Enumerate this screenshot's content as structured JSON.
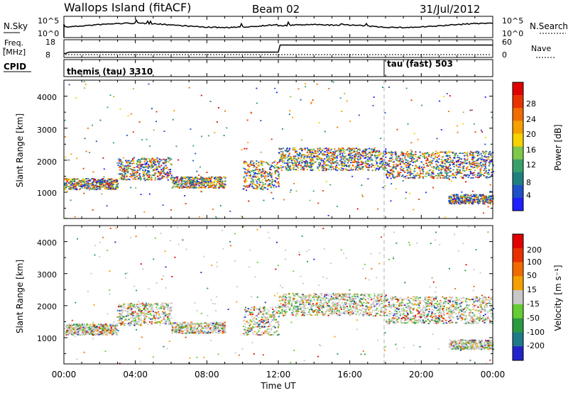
{
  "header": {
    "site": "Wallops Island (fitACF)",
    "beam": "Beam 02",
    "date": "31/Jul/2012"
  },
  "noise_panel": {
    "left_label": "N.Sky",
    "right_label": "N.Search",
    "left_ticks": [
      "10^5",
      "10^0"
    ],
    "right_ticks": [
      "10^5",
      "10^0"
    ]
  },
  "freq_panel": {
    "left_label_line1": "Freq.",
    "left_label_line2": "[MHz]",
    "right_label": "Nave",
    "left_ticks": [
      "18",
      "8"
    ],
    "right_ticks": [
      "60",
      "0"
    ]
  },
  "cpid_panel": {
    "label": "CPID",
    "programs": [
      {
        "name": "themis (tau) 3310",
        "start_hour": 0
      },
      {
        "name": "tau (fast) 503",
        "start_hour": 18
      }
    ]
  },
  "xaxis": {
    "label": "Time UT",
    "ticks": [
      "00:00",
      "04:00",
      "08:00",
      "12:00",
      "16:00",
      "20:00",
      "00:00"
    ]
  },
  "power_panel": {
    "ylabel": "Slant Range [km]",
    "yticks": [
      "1000",
      "2000",
      "3000",
      "4000"
    ],
    "colorbar_label": "Power [dB]",
    "colorbar_ticks": [
      "4",
      "8",
      "12",
      "16",
      "20",
      "24",
      "28"
    ],
    "colors": [
      "#1f1fff",
      "#1f50c8",
      "#1f8080",
      "#3aa06a",
      "#7ec84b",
      "#f5d200",
      "#f5a000",
      "#f06d00",
      "#e83200",
      "#e00000"
    ]
  },
  "velocity_panel": {
    "ylabel": "Slant Range [km]",
    "yticks": [
      "1000",
      "2000",
      "3000",
      "4000"
    ],
    "colorbar_label": "Velocity [m s⁻¹]",
    "colorbar_ticks": [
      "200",
      "100",
      "50",
      "15",
      "-15",
      "-50",
      "-100",
      "-200"
    ],
    "colors": [
      "#2222cc",
      "#1f7a8a",
      "#2a9a40",
      "#66cc33",
      "#c8c8c8",
      "#f5a000",
      "#f06a00",
      "#e83000",
      "#e00000"
    ]
  },
  "chart_data": {
    "type": "heatmap",
    "x_range_hours": [
      0,
      24
    ],
    "y_range_km": [
      180,
      4500
    ],
    "frequency_mhz": {
      "x_hours": [
        0,
        0.3,
        12,
        12.1,
        24
      ],
      "values": [
        10,
        11,
        11,
        15,
        15
      ]
    },
    "echo_regions": [
      {
        "t_start": 0,
        "t_end": 3,
        "range_km": [
          1100,
          1450
        ]
      },
      {
        "t_start": 3,
        "t_end": 6,
        "range_km": [
          1400,
          2100
        ]
      },
      {
        "t_start": 6,
        "t_end": 9,
        "range_km": [
          1150,
          1500
        ]
      },
      {
        "t_start": 10,
        "t_end": 12,
        "range_km": [
          1100,
          2000
        ]
      },
      {
        "t_start": 12,
        "t_end": 18,
        "range_km": [
          1700,
          2400
        ]
      },
      {
        "t_start": 18,
        "t_end": 24,
        "range_km": [
          1450,
          2300
        ]
      },
      {
        "t_start": 21.5,
        "t_end": 24,
        "range_km": [
          650,
          950
        ]
      }
    ]
  }
}
